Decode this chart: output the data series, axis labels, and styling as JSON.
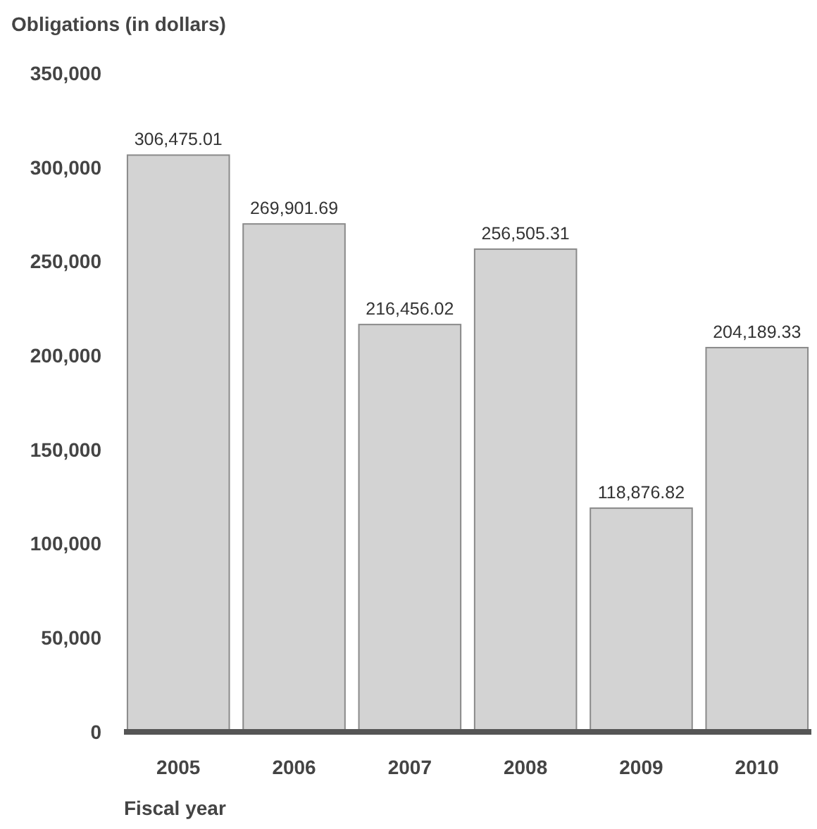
{
  "chart_data": {
    "type": "bar",
    "ylabel": "Obligations (in dollars)",
    "xlabel": "Fiscal year",
    "categories": [
      "2005",
      "2006",
      "2007",
      "2008",
      "2009",
      "2010"
    ],
    "values": [
      306475.01,
      269901.69,
      216456.02,
      256505.31,
      118876.82,
      204189.33
    ],
    "value_labels": [
      "306,475.01",
      "269,901.69",
      "216,456.02",
      "256,505.31",
      "118,876.82",
      "204,189.33"
    ],
    "color": "#d3d3d3",
    "ylim": [
      0,
      350000
    ],
    "yticks": [
      {
        "value": 0,
        "label": "0"
      },
      {
        "value": 50000,
        "label": "50,000"
      },
      {
        "value": 100000,
        "label": "100,000"
      },
      {
        "value": 150000,
        "label": "150,000"
      },
      {
        "value": 200000,
        "label": "200,000"
      },
      {
        "value": 250000,
        "label": "250,000"
      },
      {
        "value": 300000,
        "label": "300,000"
      },
      {
        "value": 350000,
        "label": "350,000"
      }
    ]
  }
}
